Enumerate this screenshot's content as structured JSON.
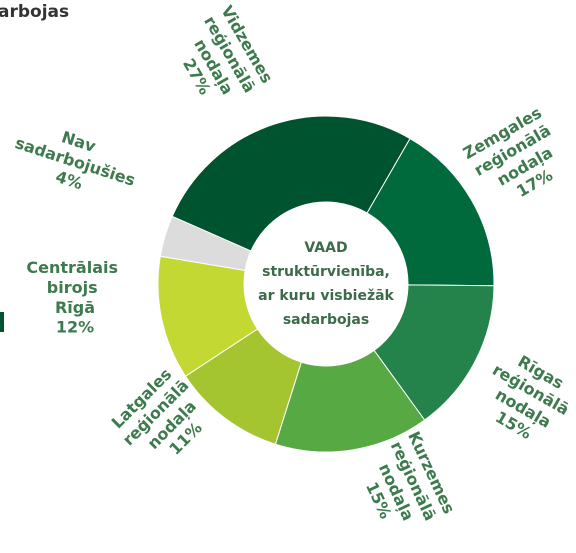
{
  "header": {
    "title_fragment": "arbojas"
  },
  "chart_data": {
    "type": "donut",
    "center_text": [
      "VAAD",
      "struktūrvienība,",
      "ar kuru visbiežāk",
      "sadarbojas"
    ],
    "categories": [
      "Zemgales reģionālā nodaļa",
      "Rīgas reģionālā nodaļa",
      "Kurzemes reģionālā nodaļa",
      "Latgales reģionālā nodaļa",
      "Centrālais birojs Rīgā",
      "Nav sadarbojušies",
      "Vidzemes reģionālā nodaļa"
    ],
    "values": [
      17,
      15,
      15,
      11,
      12,
      4,
      27
    ],
    "value_labels": [
      "17%",
      "15%",
      "15%",
      "11%",
      "12%",
      "4%",
      "27%"
    ],
    "colors": [
      "#006a3c",
      "#24834a",
      "#57a943",
      "#a5c530",
      "#c3d833",
      "#dcdcdc",
      "#00532f"
    ]
  }
}
